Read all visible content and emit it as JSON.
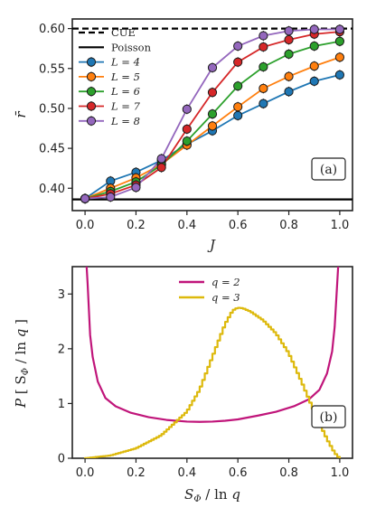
{
  "chart_data": [
    {
      "type": "line",
      "panel_label": "(a)",
      "xlabel": "J",
      "ylabel": "r̄",
      "xlim": [
        -0.05,
        1.05
      ],
      "ylim": [
        0.372,
        0.612
      ],
      "xticks": [
        "0.0",
        "0.2",
        "0.4",
        "0.6",
        "0.8",
        "1.0"
      ],
      "yticks": [
        "0.40",
        "0.45",
        "0.50",
        "0.55",
        "0.60"
      ],
      "legend_position": "top-left",
      "reference_lines": [
        {
          "name": "CUE",
          "value": 0.6,
          "style": "dashed",
          "color": "#000000"
        },
        {
          "name": "Poisson",
          "value": 0.386,
          "style": "solid",
          "color": "#000000"
        }
      ],
      "x": [
        0.0,
        0.1,
        0.2,
        0.3,
        0.4,
        0.5,
        0.6,
        0.7,
        0.8,
        0.9,
        1.0
      ],
      "series": [
        {
          "name": "L = 4",
          "color": "#1f77b4",
          "values": [
            0.387,
            0.409,
            0.42,
            0.435,
            0.455,
            0.472,
            0.491,
            0.506,
            0.521,
            0.534,
            0.542
          ]
        },
        {
          "name": "L = 5",
          "color": "#ff7f0e",
          "values": [
            0.387,
            0.4,
            0.413,
            0.43,
            0.454,
            0.478,
            0.502,
            0.525,
            0.54,
            0.553,
            0.564
          ]
        },
        {
          "name": "L = 6",
          "color": "#2ca02c",
          "values": [
            0.387,
            0.396,
            0.408,
            0.429,
            0.459,
            0.493,
            0.528,
            0.552,
            0.568,
            0.578,
            0.584
          ]
        },
        {
          "name": "L = 7",
          "color": "#d62728",
          "values": [
            0.387,
            0.393,
            0.404,
            0.426,
            0.474,
            0.52,
            0.558,
            0.577,
            0.586,
            0.593,
            0.596
          ]
        },
        {
          "name": "L = 8",
          "color": "#9467bd",
          "values": [
            0.387,
            0.389,
            0.401,
            0.437,
            0.499,
            0.551,
            0.578,
            0.591,
            0.597,
            0.599,
            0.599
          ]
        }
      ]
    },
    {
      "type": "line",
      "panel_label": "(b)",
      "xlabel": "S_Φ / ln q",
      "ylabel": "P [S_Φ / ln q]",
      "xlim": [
        -0.05,
        1.05
      ],
      "ylim": [
        0,
        3.5
      ],
      "xticks": [
        "0.0",
        "0.2",
        "0.4",
        "0.6",
        "0.8",
        "1.0"
      ],
      "yticks": [
        "0",
        "1",
        "2",
        "3"
      ],
      "legend_position": "top-center",
      "series": [
        {
          "name": "q = 2",
          "color": "#c0157a",
          "style": "smooth",
          "x": [
            0.005,
            0.01,
            0.02,
            0.03,
            0.05,
            0.08,
            0.12,
            0.18,
            0.25,
            0.32,
            0.4,
            0.45,
            0.5,
            0.55,
            0.6,
            0.68,
            0.75,
            0.82,
            0.88,
            0.92,
            0.95,
            0.97,
            0.98,
            0.99,
            0.995
          ],
          "values": [
            3.6,
            3.2,
            2.25,
            1.85,
            1.4,
            1.1,
            0.95,
            0.83,
            0.75,
            0.7,
            0.67,
            0.665,
            0.67,
            0.685,
            0.71,
            0.78,
            0.85,
            0.95,
            1.08,
            1.25,
            1.55,
            1.95,
            2.4,
            3.2,
            3.6
          ]
        },
        {
          "name": "q = 3",
          "color": "#ddb90c",
          "style": "step",
          "x": [
            0.0,
            0.1,
            0.2,
            0.3,
            0.4,
            0.45,
            0.5,
            0.55,
            0.58,
            0.6,
            0.62,
            0.65,
            0.7,
            0.75,
            0.8,
            0.85,
            0.9,
            0.95,
            0.98,
            1.0
          ],
          "values": [
            0.0,
            0.05,
            0.18,
            0.42,
            0.85,
            1.25,
            1.85,
            2.45,
            2.7,
            2.75,
            2.74,
            2.68,
            2.52,
            2.28,
            1.92,
            1.4,
            0.85,
            0.35,
            0.1,
            0.0
          ]
        }
      ]
    }
  ]
}
